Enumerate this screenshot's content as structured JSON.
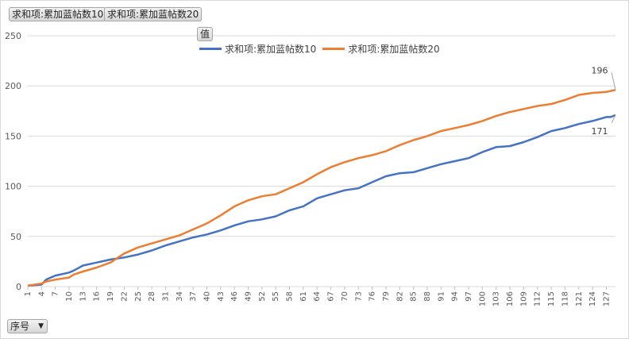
{
  "filters": {
    "field1": "求和项:累加蓝帖数10",
    "field2": "求和项:累加蓝帖数20",
    "values_button": "值",
    "axis_button": "序号"
  },
  "chart_data": {
    "type": "line",
    "ylim": [
      0,
      250
    ],
    "yticks": [
      0,
      50,
      100,
      150,
      200,
      250
    ],
    "xlim": [
      1,
      129
    ],
    "xticks": [
      1,
      4,
      7,
      10,
      13,
      16,
      19,
      22,
      25,
      28,
      31,
      34,
      37,
      40,
      43,
      46,
      49,
      52,
      55,
      58,
      61,
      64,
      67,
      70,
      73,
      76,
      79,
      82,
      85,
      88,
      91,
      94,
      97,
      100,
      103,
      106,
      109,
      112,
      115,
      118,
      121,
      124,
      127
    ],
    "grid": true,
    "legend_position": "top",
    "series": [
      {
        "name": "求和项:累加蓝帖数10",
        "color": "#4472c4",
        "x": [
          1,
          4,
          5,
          7,
          10,
          11,
          13,
          16,
          19,
          22,
          25,
          28,
          31,
          34,
          37,
          40,
          43,
          46,
          49,
          52,
          55,
          58,
          61,
          64,
          67,
          70,
          73,
          76,
          79,
          82,
          85,
          88,
          91,
          94,
          97,
          100,
          103,
          106,
          109,
          112,
          115,
          118,
          121,
          124,
          127,
          128,
          129
        ],
        "y": [
          1,
          2,
          7,
          11,
          14,
          16,
          21,
          24,
          27,
          29,
          32,
          36,
          41,
          45,
          49,
          52,
          56,
          61,
          65,
          67,
          70,
          76,
          80,
          88,
          92,
          96,
          98,
          104,
          110,
          113,
          114,
          118,
          122,
          125,
          128,
          134,
          139,
          140,
          144,
          149,
          155,
          158,
          162,
          165,
          169,
          169,
          171
        ],
        "last_label": "171"
      },
      {
        "name": "求和项:累加蓝帖数20",
        "color": "#ed7d31",
        "x": [
          1,
          4,
          5,
          7,
          10,
          11,
          13,
          16,
          19,
          22,
          25,
          28,
          31,
          34,
          37,
          40,
          43,
          46,
          49,
          52,
          55,
          58,
          61,
          64,
          67,
          70,
          73,
          76,
          79,
          82,
          85,
          88,
          91,
          94,
          97,
          100,
          103,
          106,
          109,
          112,
          115,
          118,
          121,
          124,
          127,
          128,
          129
        ],
        "y": [
          1,
          3,
          5,
          7,
          9,
          12,
          15,
          19,
          24,
          33,
          39,
          43,
          47,
          51,
          57,
          63,
          71,
          80,
          86,
          90,
          92,
          98,
          104,
          112,
          119,
          124,
          128,
          131,
          135,
          141,
          146,
          150,
          155,
          158,
          161,
          165,
          170,
          174,
          177,
          180,
          182,
          186,
          191,
          193,
          194,
          195,
          196
        ],
        "last_label": "196"
      }
    ]
  }
}
